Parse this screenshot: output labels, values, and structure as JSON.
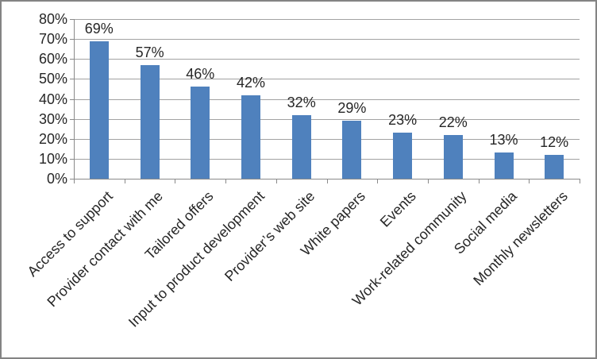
{
  "chart_data": {
    "type": "bar",
    "categories": [
      "Access to support",
      "Provider contact with me",
      "Tailored offers",
      "Input to product development",
      "Provider’s web site",
      "White papers",
      "Events",
      "Work-related community",
      "Social media",
      "Monthly newsletters"
    ],
    "values": [
      69,
      57,
      46,
      42,
      32,
      29,
      23,
      22,
      13,
      12
    ],
    "value_labels": [
      "69%",
      "57%",
      "46%",
      "42%",
      "32%",
      "29%",
      "23%",
      "22%",
      "13%",
      "12%"
    ],
    "title": "",
    "xlabel": "",
    "ylabel": "",
    "ylim": [
      0,
      80
    ],
    "y_tick_step": 10,
    "y_tick_labels": [
      "0%",
      "10%",
      "20%",
      "30%",
      "40%",
      "50%",
      "60%",
      "70%",
      "80%"
    ],
    "grid": true,
    "legend": "none",
    "x_label_rotation_deg": 45,
    "colors": {
      "bar": "#4f81bd",
      "gridline": "#a2a2a2",
      "axis": "#8a8a8a",
      "text": "#262626",
      "frame_border": "#848484",
      "background": "#ffffff"
    }
  }
}
